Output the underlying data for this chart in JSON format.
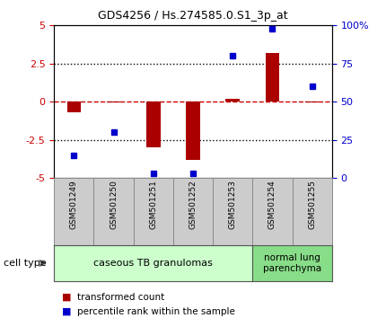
{
  "title": "GDS4256 / Hs.274585.0.S1_3p_at",
  "samples": [
    "GSM501249",
    "GSM501250",
    "GSM501251",
    "GSM501252",
    "GSM501253",
    "GSM501254",
    "GSM501255"
  ],
  "transformed_count": [
    -0.7,
    -0.05,
    -3.0,
    -3.8,
    0.2,
    3.2,
    -0.05
  ],
  "percentile_rank": [
    15,
    30,
    3,
    3,
    80,
    98,
    60
  ],
  "ylim_left": [
    -5,
    5
  ],
  "ylim_right": [
    0,
    100
  ],
  "yticks_left": [
    -5,
    -2.5,
    0,
    2.5,
    5
  ],
  "yticks_right": [
    0,
    25,
    50,
    75,
    100
  ],
  "ytick_labels_left": [
    "-5",
    "-2.5",
    "0",
    "2.5",
    "5"
  ],
  "ytick_labels_right": [
    "0",
    "25",
    "50",
    "75",
    "100%"
  ],
  "bar_color": "#AA0000",
  "dot_color": "#0000CC",
  "hline0_color": "#CC0000",
  "hline_dotted_color": "#000000",
  "group1_label": "caseous TB granulomas",
  "group2_label": "normal lung\nparenchyma",
  "group1_color": "#CCFFCC",
  "group2_color": "#88DD88",
  "xtick_bg_color": "#CCCCCC",
  "cell_type_label": "cell type",
  "legend_bar_label": "transformed count",
  "legend_dot_label": "percentile rank within the sample",
  "tick_label_color_left": "#CC0000",
  "tick_label_color_right": "#0000CC",
  "n_group1": 5,
  "n_group2": 2,
  "bar_width": 0.35,
  "dot_markersize": 5
}
